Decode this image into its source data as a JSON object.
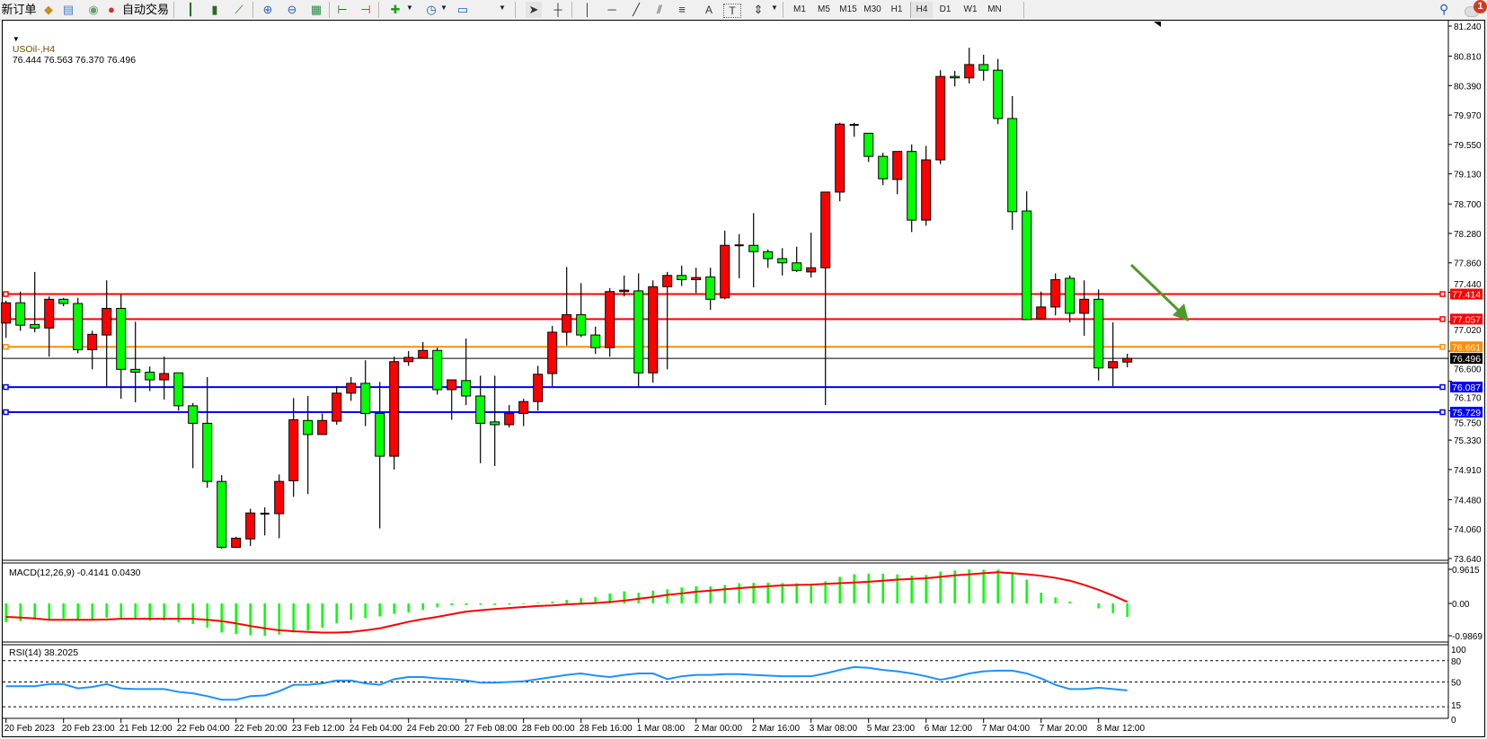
{
  "toolbar": {
    "new_order": "新订单",
    "auto_trading": "自动交易",
    "icons": [
      "market-watch-icon",
      "data-window-icon",
      "signals-icon",
      "auto-trading-icon",
      "bar-chart-icon",
      "candlestick-icon",
      "line-chart-icon",
      "zoom-in-icon",
      "zoom-out-icon",
      "tile-windows-icon",
      "auto-scroll-icon",
      "chart-shift-icon",
      "indicators-icon",
      "periodicity-icon",
      "templates-icon",
      "cursor-icon",
      "crosshair-icon",
      "vertical-line-icon",
      "horizontal-line-icon",
      "trendline-icon",
      "equidistant-channel-icon",
      "fibonacci-icon",
      "text-icon",
      "text-label-icon",
      "arrows-icon"
    ],
    "text_tool": "A",
    "label_tool": "T",
    "timeframes": [
      "M1",
      "M5",
      "M15",
      "M30",
      "H1",
      "H4",
      "D1",
      "W1",
      "MN"
    ],
    "active_timeframe": "H4",
    "notification_count": "1"
  },
  "chart": {
    "symbol": "USOil-,H4",
    "ohlc_text": "76.444 76.563 76.370 76.496",
    "bull_color": "#ff0000",
    "bear_color": "#00ff00",
    "price_ticks": [
      "81.240",
      "80.810",
      "80.390",
      "79.970",
      "79.550",
      "79.130",
      "78.700",
      "78.280",
      "77.860",
      "77.440",
      "77.020",
      "76.600",
      "76.170",
      "75.750",
      "75.330",
      "74.910",
      "74.480",
      "74.060",
      "73.640"
    ],
    "time_labels": [
      "20 Feb 2023",
      "20 Feb 23:00",
      "21 Feb 12:00",
      "22 Feb 04:00",
      "22 Feb 20:00",
      "23 Feb 12:00",
      "24 Feb 04:00",
      "24 Feb 20:00",
      "27 Feb 08:00",
      "28 Feb 00:00",
      "28 Feb 16:00",
      "1 Mar 08:00",
      "2 Mar 00:00",
      "2 Mar 16:00",
      "3 Mar 08:00",
      "5 Mar 23:00",
      "6 Mar 12:00",
      "7 Mar 04:00",
      "7 Mar 20:00",
      "8 Mar 12:00"
    ],
    "hlines": [
      {
        "price": 77.414,
        "label": "77.414",
        "color": "#ff0000"
      },
      {
        "price": 77.057,
        "label": "77.057",
        "color": "#ff0000"
      },
      {
        "price": 76.661,
        "label": "76.661",
        "color": "#ff8c00"
      },
      {
        "price": 76.087,
        "label": "76.087",
        "color": "#0000ff"
      },
      {
        "price": 75.729,
        "label": "75.729",
        "color": "#0000ff"
      }
    ],
    "bid": {
      "price": 76.496,
      "label": "76.496",
      "color": "#000000"
    },
    "arrow_color": "#4e9a2e"
  },
  "macd": {
    "label": "MACD(12,26,9) -0.4141 0.0430",
    "ticks": [
      "0.9615",
      "0.00",
      "-0.9869"
    ],
    "hist_color": "#00ff00",
    "signal_color": "#ff0000"
  },
  "rsi": {
    "label": "RSI(14) 38.2025",
    "levels": [
      "100",
      "80",
      "50",
      "15",
      "0"
    ],
    "color": "#1e90ff"
  },
  "chart_data": [
    {
      "type": "candlestick",
      "title": "USOil-,H4",
      "ylim": [
        73.64,
        81.24
      ],
      "x_tick_labels": [
        "20 Feb 2023",
        "20 Feb 23:00",
        "21 Feb 12:00",
        "22 Feb 04:00",
        "22 Feb 20:00",
        "23 Feb 12:00",
        "24 Feb 04:00",
        "24 Feb 20:00",
        "27 Feb 08:00",
        "28 Feb 00:00",
        "28 Feb 16:00",
        "1 Mar 08:00",
        "2 Mar 00:00",
        "2 Mar 16:00",
        "3 Mar 08:00",
        "5 Mar 23:00",
        "6 Mar 12:00",
        "7 Mar 04:00",
        "7 Mar 20:00",
        "8 Mar 12:00"
      ],
      "ohlc": [
        [
          77.0,
          77.32,
          76.79,
          77.29
        ],
        [
          77.29,
          77.45,
          76.89,
          76.97
        ],
        [
          76.98,
          77.73,
          76.87,
          76.93
        ],
        [
          76.93,
          77.38,
          76.52,
          77.34
        ],
        [
          77.34,
          77.36,
          77.24,
          77.28
        ],
        [
          77.28,
          77.36,
          76.57,
          76.62
        ],
        [
          76.62,
          76.89,
          76.34,
          76.84
        ],
        [
          76.83,
          77.61,
          76.09,
          77.21
        ],
        [
          77.21,
          77.41,
          75.92,
          76.34
        ],
        [
          76.34,
          77.02,
          75.87,
          76.3
        ],
        [
          76.3,
          76.38,
          76.03,
          76.19
        ],
        [
          76.19,
          76.52,
          75.91,
          76.28
        ],
        [
          76.29,
          76.29,
          75.75,
          75.82
        ],
        [
          75.82,
          75.86,
          74.93,
          75.57
        ],
        [
          75.57,
          76.23,
          74.65,
          74.74
        ],
        [
          74.74,
          74.83,
          73.78,
          73.8
        ],
        [
          73.8,
          73.95,
          73.8,
          73.93
        ],
        [
          73.92,
          74.35,
          73.82,
          74.29
        ],
        [
          74.28,
          74.37,
          73.97,
          74.28
        ],
        [
          74.28,
          74.84,
          73.93,
          74.74
        ],
        [
          74.75,
          75.93,
          74.52,
          75.62
        ],
        [
          75.61,
          75.96,
          74.56,
          75.41
        ],
        [
          75.41,
          75.71,
          75.41,
          75.61
        ],
        [
          75.6,
          76.1,
          75.55,
          76.0
        ],
        [
          76.0,
          76.23,
          75.89,
          76.14
        ],
        [
          76.14,
          76.47,
          75.53,
          75.71
        ],
        [
          75.71,
          76.16,
          74.07,
          75.1
        ],
        [
          75.1,
          76.52,
          74.91,
          76.45
        ],
        [
          76.45,
          76.6,
          76.39,
          76.51
        ],
        [
          76.5,
          76.73,
          76.5,
          76.61
        ],
        [
          76.61,
          76.65,
          75.98,
          76.05
        ],
        [
          76.05,
          76.19,
          75.62,
          76.19
        ],
        [
          76.18,
          76.78,
          75.83,
          75.96
        ],
        [
          75.96,
          76.25,
          75.0,
          75.57
        ],
        [
          75.59,
          76.25,
          74.96,
          75.55
        ],
        [
          75.55,
          75.83,
          75.51,
          75.71
        ],
        [
          75.71,
          75.92,
          75.53,
          75.88
        ],
        [
          75.88,
          76.39,
          75.75,
          76.27
        ],
        [
          76.28,
          76.96,
          76.1,
          76.87
        ],
        [
          76.87,
          77.8,
          76.68,
          77.12
        ],
        [
          77.12,
          77.57,
          76.8,
          76.83
        ],
        [
          76.83,
          76.95,
          76.56,
          76.65
        ],
        [
          76.65,
          77.5,
          76.52,
          77.45
        ],
        [
          77.45,
          77.68,
          77.38,
          77.47
        ],
        [
          77.46,
          77.71,
          76.09,
          76.29
        ],
        [
          76.29,
          77.61,
          76.15,
          77.52
        ],
        [
          77.52,
          77.73,
          76.34,
          77.68
        ],
        [
          77.68,
          77.82,
          77.53,
          77.62
        ],
        [
          77.62,
          77.79,
          77.43,
          77.65
        ],
        [
          77.66,
          77.79,
          77.19,
          77.34
        ],
        [
          77.36,
          78.32,
          77.34,
          78.11
        ],
        [
          78.11,
          78.27,
          77.64,
          78.11
        ],
        [
          78.11,
          78.57,
          77.51,
          78.02
        ],
        [
          78.02,
          78.05,
          77.79,
          77.92
        ],
        [
          77.92,
          78.07,
          77.68,
          77.86
        ],
        [
          77.86,
          78.09,
          77.73,
          77.75
        ],
        [
          77.73,
          78.29,
          77.65,
          77.79
        ],
        [
          77.79,
          78.87,
          75.83,
          78.87
        ],
        [
          78.87,
          79.86,
          78.74,
          79.84
        ],
        [
          79.83,
          79.86,
          79.66,
          79.83
        ],
        [
          79.71,
          79.71,
          79.3,
          79.38
        ],
        [
          79.38,
          79.43,
          78.97,
          79.06
        ],
        [
          79.05,
          79.45,
          78.84,
          79.45
        ],
        [
          79.45,
          79.55,
          78.3,
          78.47
        ],
        [
          78.47,
          79.53,
          78.39,
          79.33
        ],
        [
          79.33,
          80.61,
          79.27,
          80.52
        ],
        [
          80.52,
          80.6,
          80.38,
          80.5
        ],
        [
          80.5,
          80.93,
          80.42,
          80.69
        ],
        [
          80.69,
          80.83,
          80.46,
          80.61
        ],
        [
          80.61,
          80.77,
          79.84,
          79.92
        ],
        [
          79.92,
          80.24,
          78.33,
          78.59
        ],
        [
          78.6,
          78.88,
          77.05,
          77.05
        ],
        [
          77.06,
          77.45,
          77.06,
          77.23
        ],
        [
          77.23,
          77.71,
          77.11,
          77.62
        ],
        [
          77.64,
          77.68,
          77.01,
          77.14
        ],
        [
          77.14,
          77.61,
          76.82,
          77.34
        ],
        [
          77.34,
          77.48,
          76.18,
          76.36
        ],
        [
          76.36,
          77.01,
          76.1,
          76.45
        ],
        [
          76.444,
          76.563,
          76.37,
          76.496
        ]
      ]
    },
    {
      "type": "bar+line",
      "title": "MACD(12,26,9) -0.4141 0.0430",
      "ylim": [
        -0.9869,
        0.9615
      ],
      "series": [
        {
          "name": "MACD",
          "type": "bar",
          "values": [
            -0.57,
            -0.54,
            -0.5,
            -0.5,
            -0.46,
            -0.48,
            -0.48,
            -0.43,
            -0.48,
            -0.48,
            -0.52,
            -0.52,
            -0.58,
            -0.63,
            -0.74,
            -0.89,
            -0.93,
            -0.97,
            -0.9869,
            -0.95,
            -0.89,
            -0.82,
            -0.74,
            -0.61,
            -0.5,
            -0.45,
            -0.4,
            -0.32,
            -0.28,
            -0.2,
            -0.12,
            -0.06,
            -0.05,
            -0.04,
            -0.05,
            -0.04,
            -0.02,
            0.02,
            0.05,
            0.1,
            0.15,
            0.18,
            0.28,
            0.34,
            0.3,
            0.36,
            0.4,
            0.45,
            0.48,
            0.48,
            0.52,
            0.57,
            0.58,
            0.58,
            0.57,
            0.57,
            0.55,
            0.62,
            0.75,
            0.82,
            0.84,
            0.84,
            0.82,
            0.78,
            0.8,
            0.9,
            0.93,
            0.96,
            0.95,
            0.95,
            0.88,
            0.67,
            0.3,
            0.17,
            0.05,
            0.0,
            -0.15,
            -0.3,
            -0.4141
          ]
        },
        {
          "name": "Signal",
          "type": "line",
          "values": [
            -0.41,
            -0.43,
            -0.46,
            -0.5,
            -0.5,
            -0.5,
            -0.5,
            -0.49,
            -0.47,
            -0.47,
            -0.47,
            -0.47,
            -0.47,
            -0.47,
            -0.5,
            -0.54,
            -0.61,
            -0.69,
            -0.76,
            -0.82,
            -0.85,
            -0.87,
            -0.89,
            -0.89,
            -0.87,
            -0.82,
            -0.76,
            -0.66,
            -0.56,
            -0.48,
            -0.41,
            -0.33,
            -0.25,
            -0.21,
            -0.17,
            -0.14,
            -0.11,
            -0.08,
            -0.06,
            -0.03,
            -0.01,
            0.01,
            0.04,
            0.08,
            0.13,
            0.18,
            0.24,
            0.28,
            0.33,
            0.36,
            0.4,
            0.43,
            0.46,
            0.48,
            0.51,
            0.52,
            0.53,
            0.55,
            0.57,
            0.59,
            0.61,
            0.64,
            0.67,
            0.69,
            0.71,
            0.75,
            0.79,
            0.82,
            0.85,
            0.88,
            0.85,
            0.82,
            0.78,
            0.72,
            0.64,
            0.52,
            0.38,
            0.22,
            0.043
          ]
        }
      ]
    },
    {
      "type": "line",
      "title": "RSI(14) 38.2025",
      "ylim": [
        0,
        100
      ],
      "levels": [
        80,
        50,
        15
      ],
      "values": [
        44,
        44,
        44,
        47,
        47,
        41,
        43,
        47,
        41,
        40,
        40,
        40,
        36,
        34,
        30,
        25,
        25,
        30,
        31,
        37,
        46,
        46,
        48,
        52,
        52,
        48,
        46,
        54,
        57,
        57,
        55,
        54,
        52,
        49,
        49,
        50,
        51,
        54,
        57,
        60,
        62,
        59,
        57,
        60,
        62,
        62,
        54,
        58,
        60,
        60,
        61,
        61,
        60,
        59,
        58,
        58,
        58,
        62,
        67,
        71,
        70,
        67,
        65,
        62,
        58,
        53,
        57,
        62,
        65,
        66,
        66,
        62,
        55,
        46,
        40,
        40,
        42,
        40,
        38.2025
      ]
    }
  ]
}
